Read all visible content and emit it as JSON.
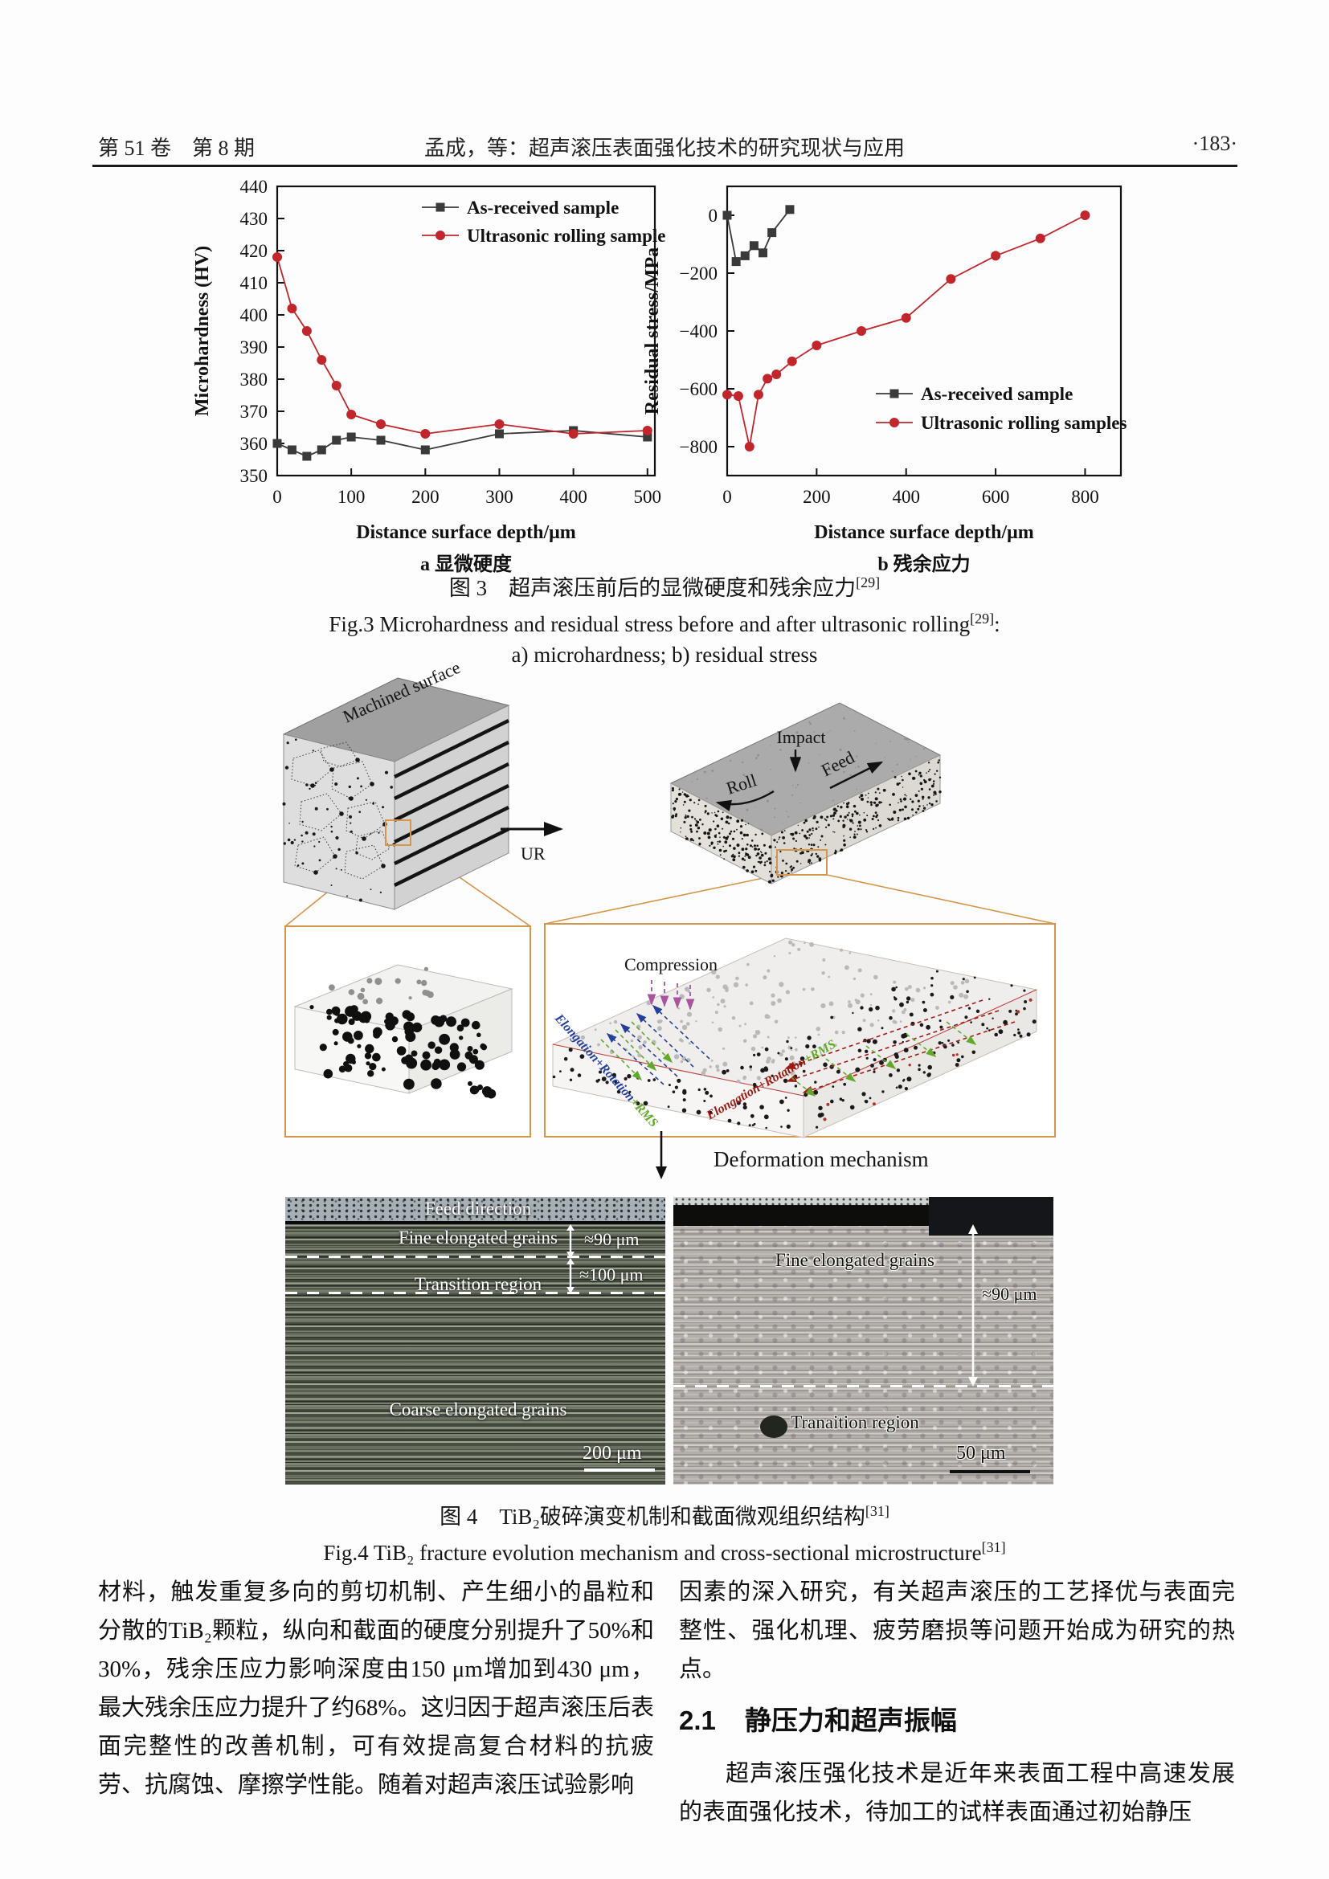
{
  "header": {
    "left": "第 51 卷　第 8 期",
    "center": "孟成，等：超声滚压表面强化技术的研究现状与应用",
    "right": "·183·"
  },
  "fig3": {
    "caption_cn": "图 3　超声滚压前后的显微硬度和残余应力",
    "caption_cn_ref": "[29]",
    "caption_en": "Fig.3 Microhardness and residual stress before and after ultrasonic rolling",
    "caption_en_ref": "[29]",
    "caption_en_tail": ":",
    "caption_items": "a) microhardness; b) residual stress"
  },
  "chart_data": [
    {
      "type": "line",
      "title": "",
      "xlabel": "Distance surface depth/μm",
      "ylabel": "Microhardness (HV)",
      "sublabel": "a 显微硬度",
      "xlim": [
        0,
        510
      ],
      "ylim": [
        350,
        440
      ],
      "xticks": [
        0,
        100,
        200,
        300,
        400,
        500
      ],
      "yticks": [
        350,
        360,
        370,
        380,
        390,
        400,
        410,
        420,
        430,
        440
      ],
      "grid": false,
      "legend_position": "top-right",
      "series": [
        {
          "name": "As-received sample",
          "color": "#3a3a3a",
          "marker": "square",
          "x": [
            0,
            20,
            40,
            60,
            80,
            100,
            140,
            200,
            300,
            400,
            500
          ],
          "y": [
            360,
            358,
            356,
            358,
            361,
            362,
            361,
            358,
            363,
            364,
            362
          ]
        },
        {
          "name": "Ultrasonic rolling sample",
          "color": "#c0262c",
          "marker": "circle",
          "x": [
            0,
            20,
            40,
            60,
            80,
            100,
            140,
            200,
            300,
            400,
            500
          ],
          "y": [
            418,
            402,
            395,
            386,
            378,
            369,
            366,
            363,
            366,
            363,
            364
          ]
        }
      ]
    },
    {
      "type": "line",
      "title": "",
      "xlabel": "Distance surface depth/μm",
      "ylabel": "Residual stress/MPa",
      "sublabel": "b 残余应力",
      "xlim": [
        0,
        880
      ],
      "ylim": [
        -900,
        100
      ],
      "xticks": [
        0,
        200,
        400,
        600,
        800
      ],
      "yticks": [
        0,
        -200,
        -400,
        -600,
        -800
      ],
      "grid": false,
      "legend_position": "center-right",
      "series": [
        {
          "name": "As-received sample",
          "color": "#3a3a3a",
          "marker": "square",
          "x": [
            0,
            20,
            40,
            60,
            80,
            100,
            140
          ],
          "y": [
            0,
            -160,
            -140,
            -105,
            -130,
            -60,
            20
          ]
        },
        {
          "name": "Ultrasonic rolling samples",
          "color": "#c0262c",
          "marker": "circle",
          "x": [
            0,
            25,
            50,
            70,
            90,
            110,
            145,
            200,
            300,
            400,
            500,
            600,
            700,
            800
          ],
          "y": [
            -620,
            -625,
            -800,
            -620,
            -565,
            -550,
            -505,
            -450,
            -400,
            -355,
            -220,
            -140,
            -80,
            0
          ]
        }
      ]
    }
  ],
  "fig4": {
    "diagram": {
      "machined_surface": "Machined surface",
      "ur": "UR",
      "impact": "Impact",
      "roll": "Roll",
      "feed": "Feed",
      "compression": "Compression",
      "left_elongation": "Elongation+Rotation",
      "left_rms": "+RMS",
      "right_elongation": "Elongation+Rotation",
      "right_rms": "+RMS",
      "deformation": "Deformation mechanism"
    },
    "micro_left": {
      "feed_direction": "Feed direction",
      "fine_grains": "Fine elongated grains",
      "depth_90": "≈90 μm",
      "depth_100": "≈100 μm",
      "transition": "Transition region",
      "coarse": "Coarse elongated grains",
      "scale": "200 μm"
    },
    "micro_right": {
      "fine_grains": "Fine elongated grains",
      "depth_90": "≈90 μm",
      "transition": "Tranaition region",
      "scale": "50 μm"
    },
    "caption_cn": "图 4　TiB₂破碎演变机制和截面微观组织结构",
    "caption_cn_ref": "[31]",
    "caption_en": "Fig.4 TiB₂ fracture evolution mechanism and cross-sectional microstructure",
    "caption_en_ref": "[31]"
  },
  "body": {
    "left_paragraph": "材料，触发重复多向的剪切机制、产生细小的晶粒和分散的TiB₂颗粒，纵向和截面的硬度分别提升了50%和30%，残余压应力影响深度由150 μm增加到430 μm，最大残余压应力提升了约68%。这归因于超声滚压后表面完整性的改善机制，可有效提高复合材料的抗疲劳、抗腐蚀、摩擦学性能。随着对超声滚压试验影响",
    "right_paragraph_1": "因素的深入研究，有关超声滚压的工艺择优与表面完整性、强化机理、疲劳磨损等问题开始成为研究的热点。",
    "section_number": "2.1",
    "section_title": "静压力和超声振幅",
    "right_paragraph_2": "超声滚压强化技术是近年来表面工程中高速发展的表面强化技术，待加工的试样表面通过初始静压"
  },
  "colors": {
    "accent_red": "#c0262c",
    "marker_gray": "#3a3a3a",
    "zoom_box_orange": "#d5954b",
    "compression_magenta": "#a8549e",
    "elongation_blue": "#24409a",
    "rms_green": "#62a82a",
    "elongation_red": "#9e1b15"
  }
}
